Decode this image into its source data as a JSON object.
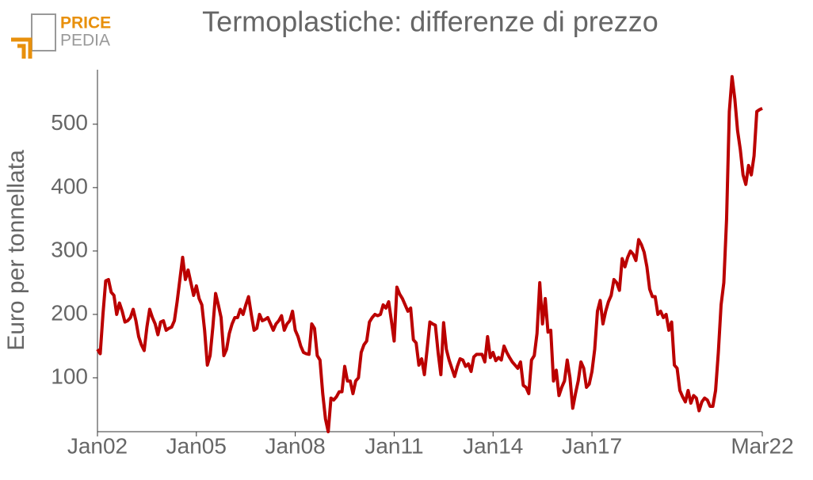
{
  "logo": {
    "top": "PRICE",
    "bottom": "PEDIA"
  },
  "chart_data": {
    "type": "line",
    "title": "Termoplastiche: differenze di prezzo",
    "ylabel": "Euro per tonnellata",
    "categories": [
      "Jan02",
      null,
      null,
      null,
      null,
      null,
      null,
      null,
      null,
      null,
      null,
      null,
      null,
      null,
      null,
      null,
      null,
      null,
      null,
      null,
      null,
      null,
      null,
      null,
      null,
      null,
      null,
      null,
      null,
      null,
      null,
      null,
      null,
      null,
      null,
      null,
      "Jan05",
      null,
      null,
      null,
      null,
      null,
      null,
      null,
      null,
      null,
      null,
      null,
      null,
      null,
      null,
      null,
      null,
      null,
      null,
      null,
      null,
      null,
      null,
      null,
      null,
      null,
      null,
      null,
      null,
      null,
      null,
      null,
      null,
      null,
      null,
      null,
      "Jan08",
      null,
      null,
      null,
      null,
      null,
      null,
      null,
      null,
      null,
      null,
      null,
      null,
      null,
      null,
      null,
      null,
      null,
      null,
      null,
      null,
      null,
      null,
      null,
      null,
      null,
      null,
      null,
      null,
      null,
      null,
      null,
      null,
      null,
      null,
      null,
      "Jan11",
      null,
      null,
      null,
      null,
      null,
      null,
      null,
      null,
      null,
      null,
      null,
      null,
      null,
      null,
      null,
      null,
      null,
      null,
      null,
      null,
      null,
      null,
      null,
      null,
      null,
      null,
      null,
      null,
      null,
      null,
      null,
      null,
      null,
      null,
      null,
      "Jan14",
      null,
      null,
      null,
      null,
      null,
      null,
      null,
      null,
      null,
      null,
      null,
      null,
      null,
      null,
      null,
      null,
      null,
      null,
      null,
      null,
      null,
      null,
      null,
      null,
      null,
      null,
      null,
      null,
      null,
      null,
      null,
      null,
      null,
      null,
      null,
      "Jan17",
      null,
      null,
      null,
      null,
      null,
      null,
      null,
      null,
      null,
      null,
      null,
      null,
      null,
      null,
      null,
      null,
      null,
      null,
      null,
      null,
      null,
      null,
      null,
      null,
      null,
      null,
      null,
      null,
      null,
      null,
      null,
      null,
      null,
      null,
      null,
      null,
      null,
      null,
      null,
      null,
      null,
      null,
      null,
      null,
      null,
      null,
      null,
      null,
      null,
      null,
      null,
      null,
      null,
      null,
      null,
      null,
      null,
      null,
      null,
      null,
      null,
      "Mar22"
    ],
    "series": [
      {
        "name": "Termoplastiche",
        "color": "#bb0000",
        "values": [
          145,
          138,
          200,
          253,
          255,
          235,
          230,
          200,
          218,
          205,
          188,
          190,
          195,
          208,
          190,
          165,
          152,
          143,
          180,
          208,
          195,
          185,
          168,
          188,
          190,
          175,
          178,
          180,
          190,
          220,
          255,
          290,
          255,
          270,
          250,
          230,
          245,
          225,
          215,
          175,
          120,
          135,
          180,
          233,
          215,
          195,
          135,
          145,
          170,
          185,
          195,
          195,
          208,
          200,
          215,
          228,
          200,
          175,
          178,
          200,
          190,
          192,
          195,
          185,
          175,
          185,
          190,
          198,
          175,
          185,
          190,
          205,
          175,
          165,
          150,
          140,
          138,
          137,
          185,
          178,
          135,
          128,
          75,
          35,
          15,
          68,
          65,
          70,
          78,
          78,
          118,
          95,
          95,
          75,
          95,
          100,
          140,
          152,
          158,
          188,
          195,
          200,
          198,
          200,
          215,
          210,
          220,
          190,
          158,
          243,
          232,
          225,
          215,
          205,
          210,
          160,
          155,
          120,
          130,
          105,
          145,
          188,
          185,
          183,
          140,
          105,
          187,
          145,
          128,
          115,
          102,
          118,
          130,
          128,
          118,
          122,
          110,
          133,
          137,
          137,
          137,
          125,
          165,
          132,
          140,
          127,
          132,
          128,
          150,
          140,
          132,
          125,
          120,
          115,
          125,
          88,
          85,
          75,
          128,
          135,
          170,
          250,
          185,
          225,
          172,
          175,
          95,
          112,
          72,
          85,
          95,
          128,
          100,
          52,
          75,
          95,
          125,
          115,
          85,
          90,
          110,
          145,
          205,
          222,
          185,
          205,
          220,
          230,
          255,
          250,
          238,
          288,
          275,
          290,
          300,
          295,
          285,
          318,
          310,
          298,
          275,
          240,
          228,
          228,
          200,
          205,
          195,
          200,
          175,
          188,
          120,
          115,
          80,
          70,
          62,
          80,
          60,
          72,
          68,
          48,
          62,
          68,
          65,
          55,
          55,
          80,
          140,
          215,
          250,
          350,
          520,
          575,
          540,
          490,
          460,
          420,
          405,
          435,
          420,
          450,
          520,
          523,
          525
        ]
      }
    ],
    "ylim": [
      15,
      586
    ],
    "yticks": [
      100,
      200,
      300,
      400,
      500
    ]
  }
}
